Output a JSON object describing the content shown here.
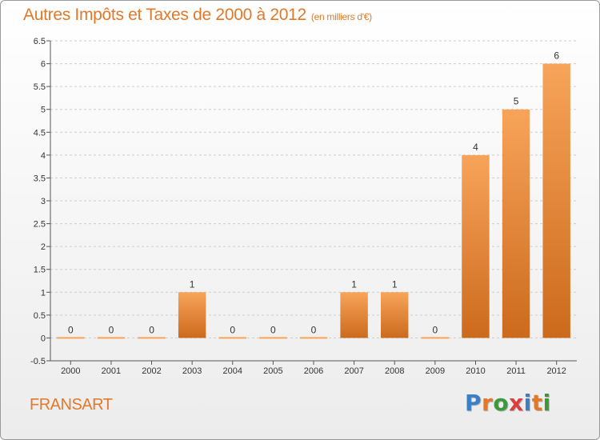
{
  "title": "Autres Impôts et Taxes de 2000 à 2012",
  "subtitle": "(en milliers d'€)",
  "place": "FRANSART",
  "logo": {
    "text": "Proxiti",
    "colors": [
      "#3a7fc8",
      "#e2792a",
      "#3a9a3a",
      "#d93f3f",
      "#3a7fc8",
      "#e2792a",
      "#3a9a3a"
    ]
  },
  "colors": {
    "accent": "#e2792a",
    "bar_top": "#f7a45a",
    "bar_bottom": "#cc6a1c",
    "grid": "#cccccc"
  },
  "chart_data": {
    "type": "bar",
    "categories": [
      "2000",
      "2001",
      "2002",
      "2003",
      "2004",
      "2005",
      "2006",
      "2007",
      "2008",
      "2009",
      "2010",
      "2011",
      "2012"
    ],
    "values": [
      0,
      0,
      0,
      1,
      0,
      0,
      0,
      1,
      1,
      0,
      4,
      5,
      6
    ],
    "data_labels": [
      "0",
      "0",
      "0",
      "1",
      "0",
      "0",
      "0",
      "1",
      "1",
      "0",
      "4",
      "5",
      "6"
    ],
    "ylim": [
      -0.5,
      6.5
    ],
    "yticks": [
      -0.5,
      0,
      0.5,
      1,
      1.5,
      2,
      2.5,
      3,
      3.5,
      4,
      4.5,
      5,
      5.5,
      6,
      6.5
    ],
    "ytick_labels": [
      "-0.5",
      "0",
      "0.5",
      "1",
      "1.5",
      "2",
      "2.5",
      "3",
      "3.5",
      "4",
      "4.5",
      "5",
      "5.5",
      "6",
      "6.5"
    ],
    "grid": "horizontal dashed",
    "legend": "none"
  }
}
